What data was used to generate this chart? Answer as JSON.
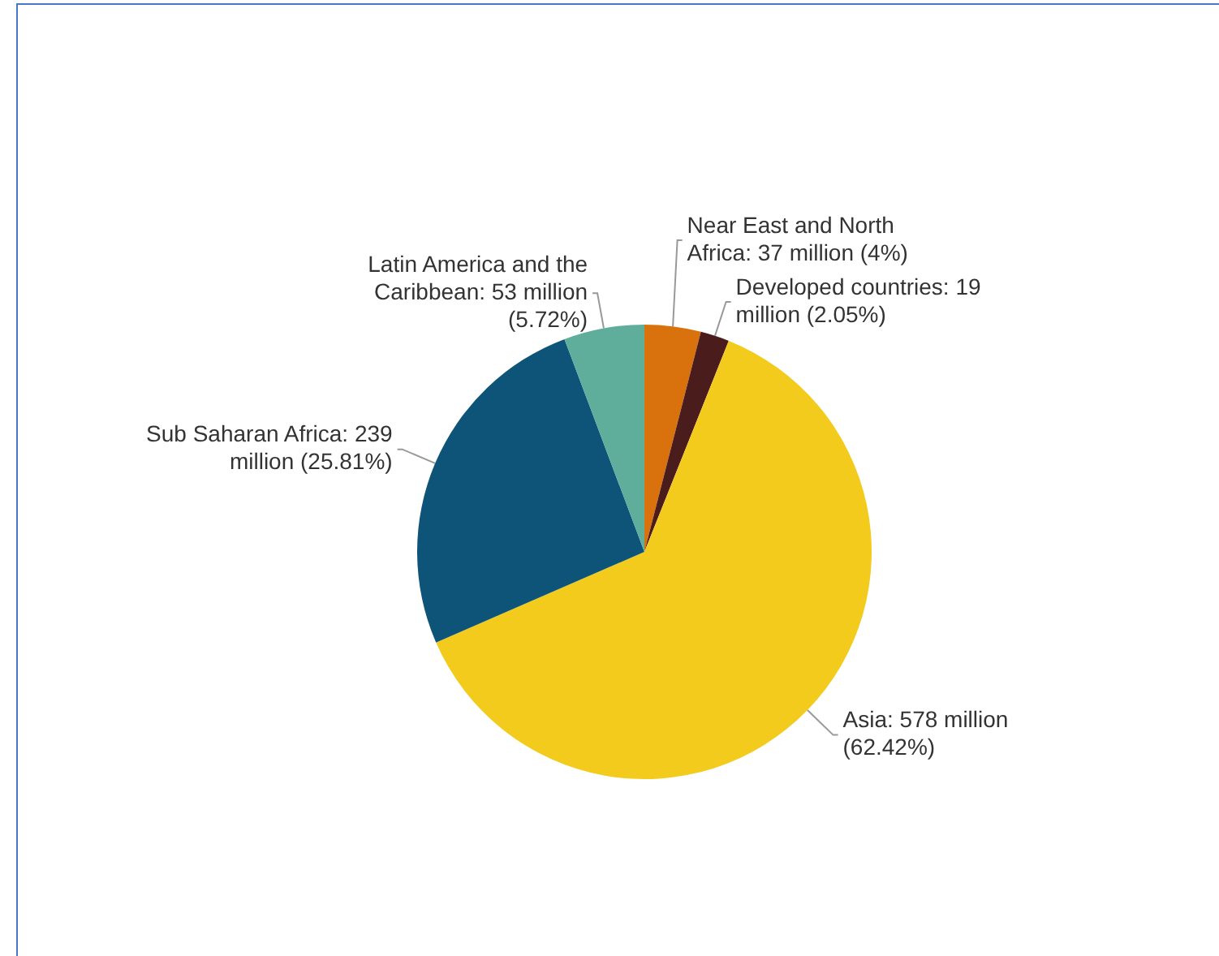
{
  "chart_data": {
    "type": "pie",
    "categories": [
      "Near East and North Africa",
      "Developed countries",
      "Asia",
      "Sub Saharan Africa",
      "Latin America and the Caribbean"
    ],
    "values": [
      4,
      2.05,
      62.42,
      25.81,
      5.72
    ],
    "value_labels": [
      "37 million (4%)",
      "19 million (2.05%)",
      "578 million (62.42%)",
      "239 million (25.81%)",
      "53 million (5.72%)"
    ],
    "colors": [
      "#d9720c",
      "#4a1c1c",
      "#f2cb1d",
      "#0e5478",
      "#5fae9c"
    ]
  }
}
